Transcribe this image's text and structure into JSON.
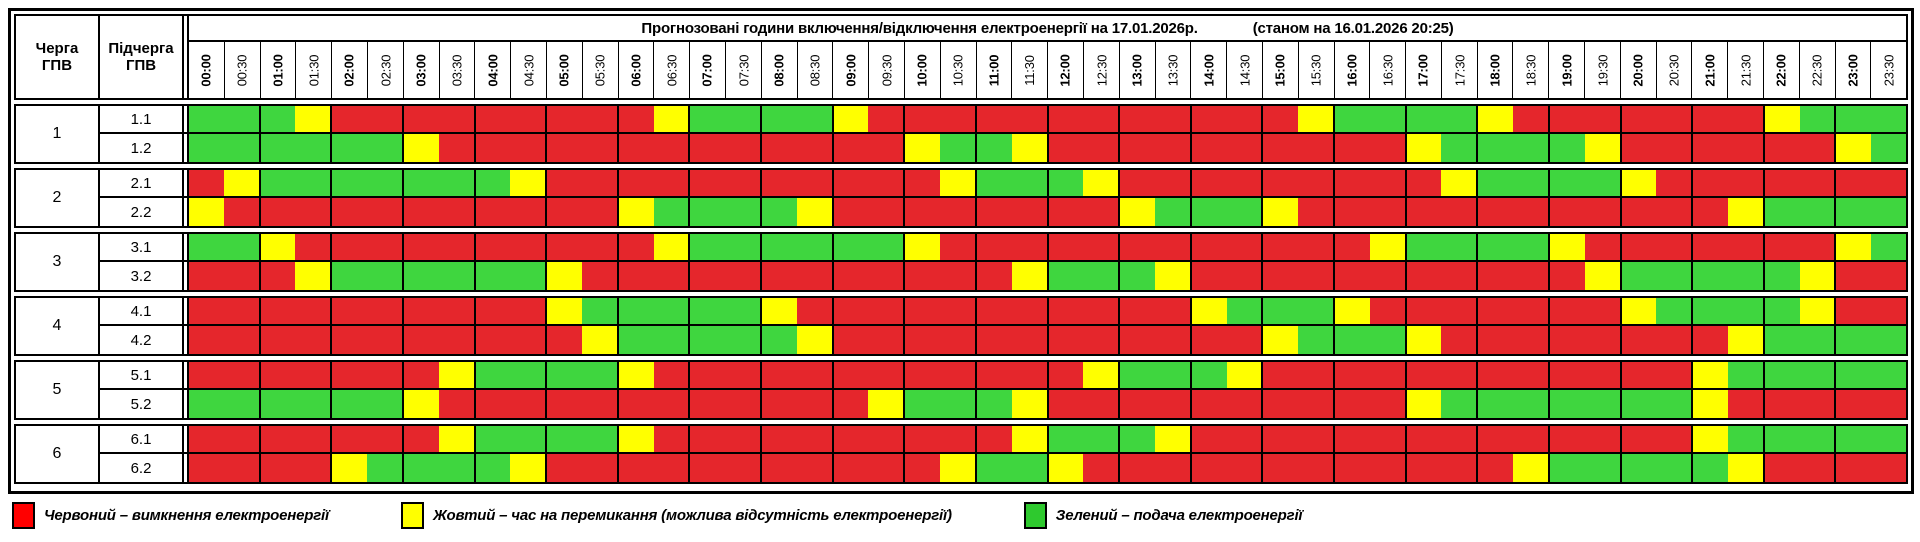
{
  "table": {
    "col1_header": "Черга\nГПВ",
    "col2_header": "Підчерга\nГПВ",
    "title": "Прогнозовані години включення/відключення електроенергії на 17.01.2026р.",
    "title_note": "(станом на 16.01.2026 20:25)",
    "times": [
      "00:00",
      "00:30",
      "01:00",
      "01:30",
      "02:00",
      "02:30",
      "03:00",
      "03:30",
      "04:00",
      "04:30",
      "05:00",
      "05:30",
      "06:00",
      "06:30",
      "07:00",
      "07:30",
      "08:00",
      "08:30",
      "09:00",
      "09:30",
      "10:00",
      "10:30",
      "11:00",
      "11:30",
      "12:00",
      "12:30",
      "13:00",
      "13:30",
      "14:00",
      "14:30",
      "15:00",
      "15:30",
      "16:00",
      "16:30",
      "17:00",
      "17:30",
      "18:00",
      "18:30",
      "19:00",
      "19:30",
      "20:00",
      "20:30",
      "21:00",
      "21:30",
      "22:00",
      "22:30",
      "23:00",
      "23:30"
    ],
    "groups": [
      {
        "queue": "1",
        "rows": [
          {
            "label": "1.1",
            "hours": [
              "GG",
              "GY",
              "RR",
              "RR",
              "RR",
              "RR",
              "RY",
              "GG",
              "GG",
              "YR",
              "RR",
              "RR",
              "RR",
              "RR",
              "RR",
              "RY",
              "GG",
              "GG",
              "YR",
              "RR",
              "RR",
              "RR",
              "YG",
              "GG"
            ]
          },
          {
            "label": "1.2",
            "hours": [
              "GG",
              "GG",
              "GG",
              "YR",
              "RR",
              "RR",
              "RR",
              "RR",
              "RR",
              "RR",
              "YG",
              "GY",
              "RR",
              "RR",
              "RR",
              "RR",
              "RR",
              "YG",
              "GG",
              "GY",
              "RR",
              "RR",
              "RR",
              "YG"
            ]
          }
        ]
      },
      {
        "queue": "2",
        "rows": [
          {
            "label": "2.1",
            "hours": [
              "RY",
              "GG",
              "GG",
              "GG",
              "GY",
              "RR",
              "RR",
              "RR",
              "RR",
              "RR",
              "RY",
              "GG",
              "GY",
              "RR",
              "RR",
              "RR",
              "RR",
              "RY",
              "GG",
              "GG",
              "YR",
              "RR",
              "RR",
              "RR"
            ]
          },
          {
            "label": "2.2",
            "hours": [
              "YR",
              "RR",
              "RR",
              "RR",
              "RR",
              "RR",
              "YG",
              "GG",
              "GY",
              "RR",
              "RR",
              "RR",
              "RR",
              "YG",
              "GG",
              "YR",
              "RR",
              "RR",
              "RR",
              "RR",
              "RR",
              "RY",
              "GG",
              "GG"
            ]
          }
        ]
      },
      {
        "queue": "3",
        "rows": [
          {
            "label": "3.1",
            "hours": [
              "GG",
              "YR",
              "RR",
              "RR",
              "RR",
              "RR",
              "RY",
              "GG",
              "GG",
              "GG",
              "YR",
              "RR",
              "RR",
              "RR",
              "RR",
              "RR",
              "RY",
              "GG",
              "GG",
              "YR",
              "RR",
              "RR",
              "RR",
              "YG"
            ]
          },
          {
            "label": "3.2",
            "hours": [
              "RR",
              "RY",
              "GG",
              "GG",
              "GG",
              "YR",
              "RR",
              "RR",
              "RR",
              "RR",
              "RR",
              "RY",
              "GG",
              "GY",
              "RR",
              "RR",
              "RR",
              "RR",
              "RR",
              "RY",
              "GG",
              "GG",
              "GY",
              "RR"
            ]
          }
        ]
      },
      {
        "queue": "4",
        "rows": [
          {
            "label": "4.1",
            "hours": [
              "RR",
              "RR",
              "RR",
              "RR",
              "RR",
              "YG",
              "GG",
              "GG",
              "YR",
              "RR",
              "RR",
              "RR",
              "RR",
              "RR",
              "YG",
              "GG",
              "YR",
              "RR",
              "RR",
              "RR",
              "YG",
              "GG",
              "GY",
              "RR"
            ]
          },
          {
            "label": "4.2",
            "hours": [
              "RR",
              "RR",
              "RR",
              "RR",
              "RR",
              "RY",
              "GG",
              "GG",
              "GY",
              "RR",
              "RR",
              "RR",
              "RR",
              "RR",
              "RR",
              "YG",
              "GG",
              "YR",
              "RR",
              "RR",
              "RR",
              "RY",
              "GG",
              "GG"
            ]
          }
        ]
      },
      {
        "queue": "5",
        "rows": [
          {
            "label": "5.1",
            "hours": [
              "RR",
              "RR",
              "RR",
              "RY",
              "GG",
              "GG",
              "YR",
              "RR",
              "RR",
              "RR",
              "RR",
              "RR",
              "RY",
              "GG",
              "GY",
              "RR",
              "RR",
              "RR",
              "RR",
              "RR",
              "RR",
              "YG",
              "GG",
              "GG"
            ]
          },
          {
            "label": "5.2",
            "hours": [
              "GG",
              "GG",
              "GG",
              "YR",
              "RR",
              "RR",
              "RR",
              "RR",
              "RR",
              "RY",
              "GG",
              "GY",
              "RR",
              "RR",
              "RR",
              "RR",
              "RR",
              "YG",
              "GG",
              "GG",
              "GG",
              "YR",
              "RR",
              "RR"
            ]
          }
        ]
      },
      {
        "queue": "6",
        "rows": [
          {
            "label": "6.1",
            "hours": [
              "RR",
              "RR",
              "RR",
              "RY",
              "GG",
              "GG",
              "YR",
              "RR",
              "RR",
              "RR",
              "RR",
              "RY",
              "GG",
              "GY",
              "RR",
              "RR",
              "RR",
              "RR",
              "RR",
              "RR",
              "RR",
              "YG",
              "GG",
              "GG"
            ]
          },
          {
            "label": "6.2",
            "hours": [
              "RR",
              "RR",
              "YG",
              "GG",
              "GY",
              "RR",
              "RR",
              "RR",
              "RR",
              "RR",
              "RY",
              "GG",
              "YR",
              "RR",
              "RR",
              "RR",
              "RR",
              "RR",
              "RY",
              "GG",
              "GG",
              "GY",
              "RR",
              "RR"
            ]
          }
        ]
      }
    ]
  },
  "colors": {
    "R": "#e5262c",
    "Y": "#ffff00",
    "G": "#3fd63f"
  },
  "legend": [
    {
      "key": "R",
      "swatch": "#ff0000",
      "label": "Червоний – вимкнення електроенергії"
    },
    {
      "key": "Y",
      "swatch": "#ffff00",
      "label": "Жовтий – час на перемикання (можлива відсутність електроенергії)"
    },
    {
      "key": "G",
      "swatch": "#2ec92e",
      "label": "Зелений – подача електроенергії"
    }
  ]
}
